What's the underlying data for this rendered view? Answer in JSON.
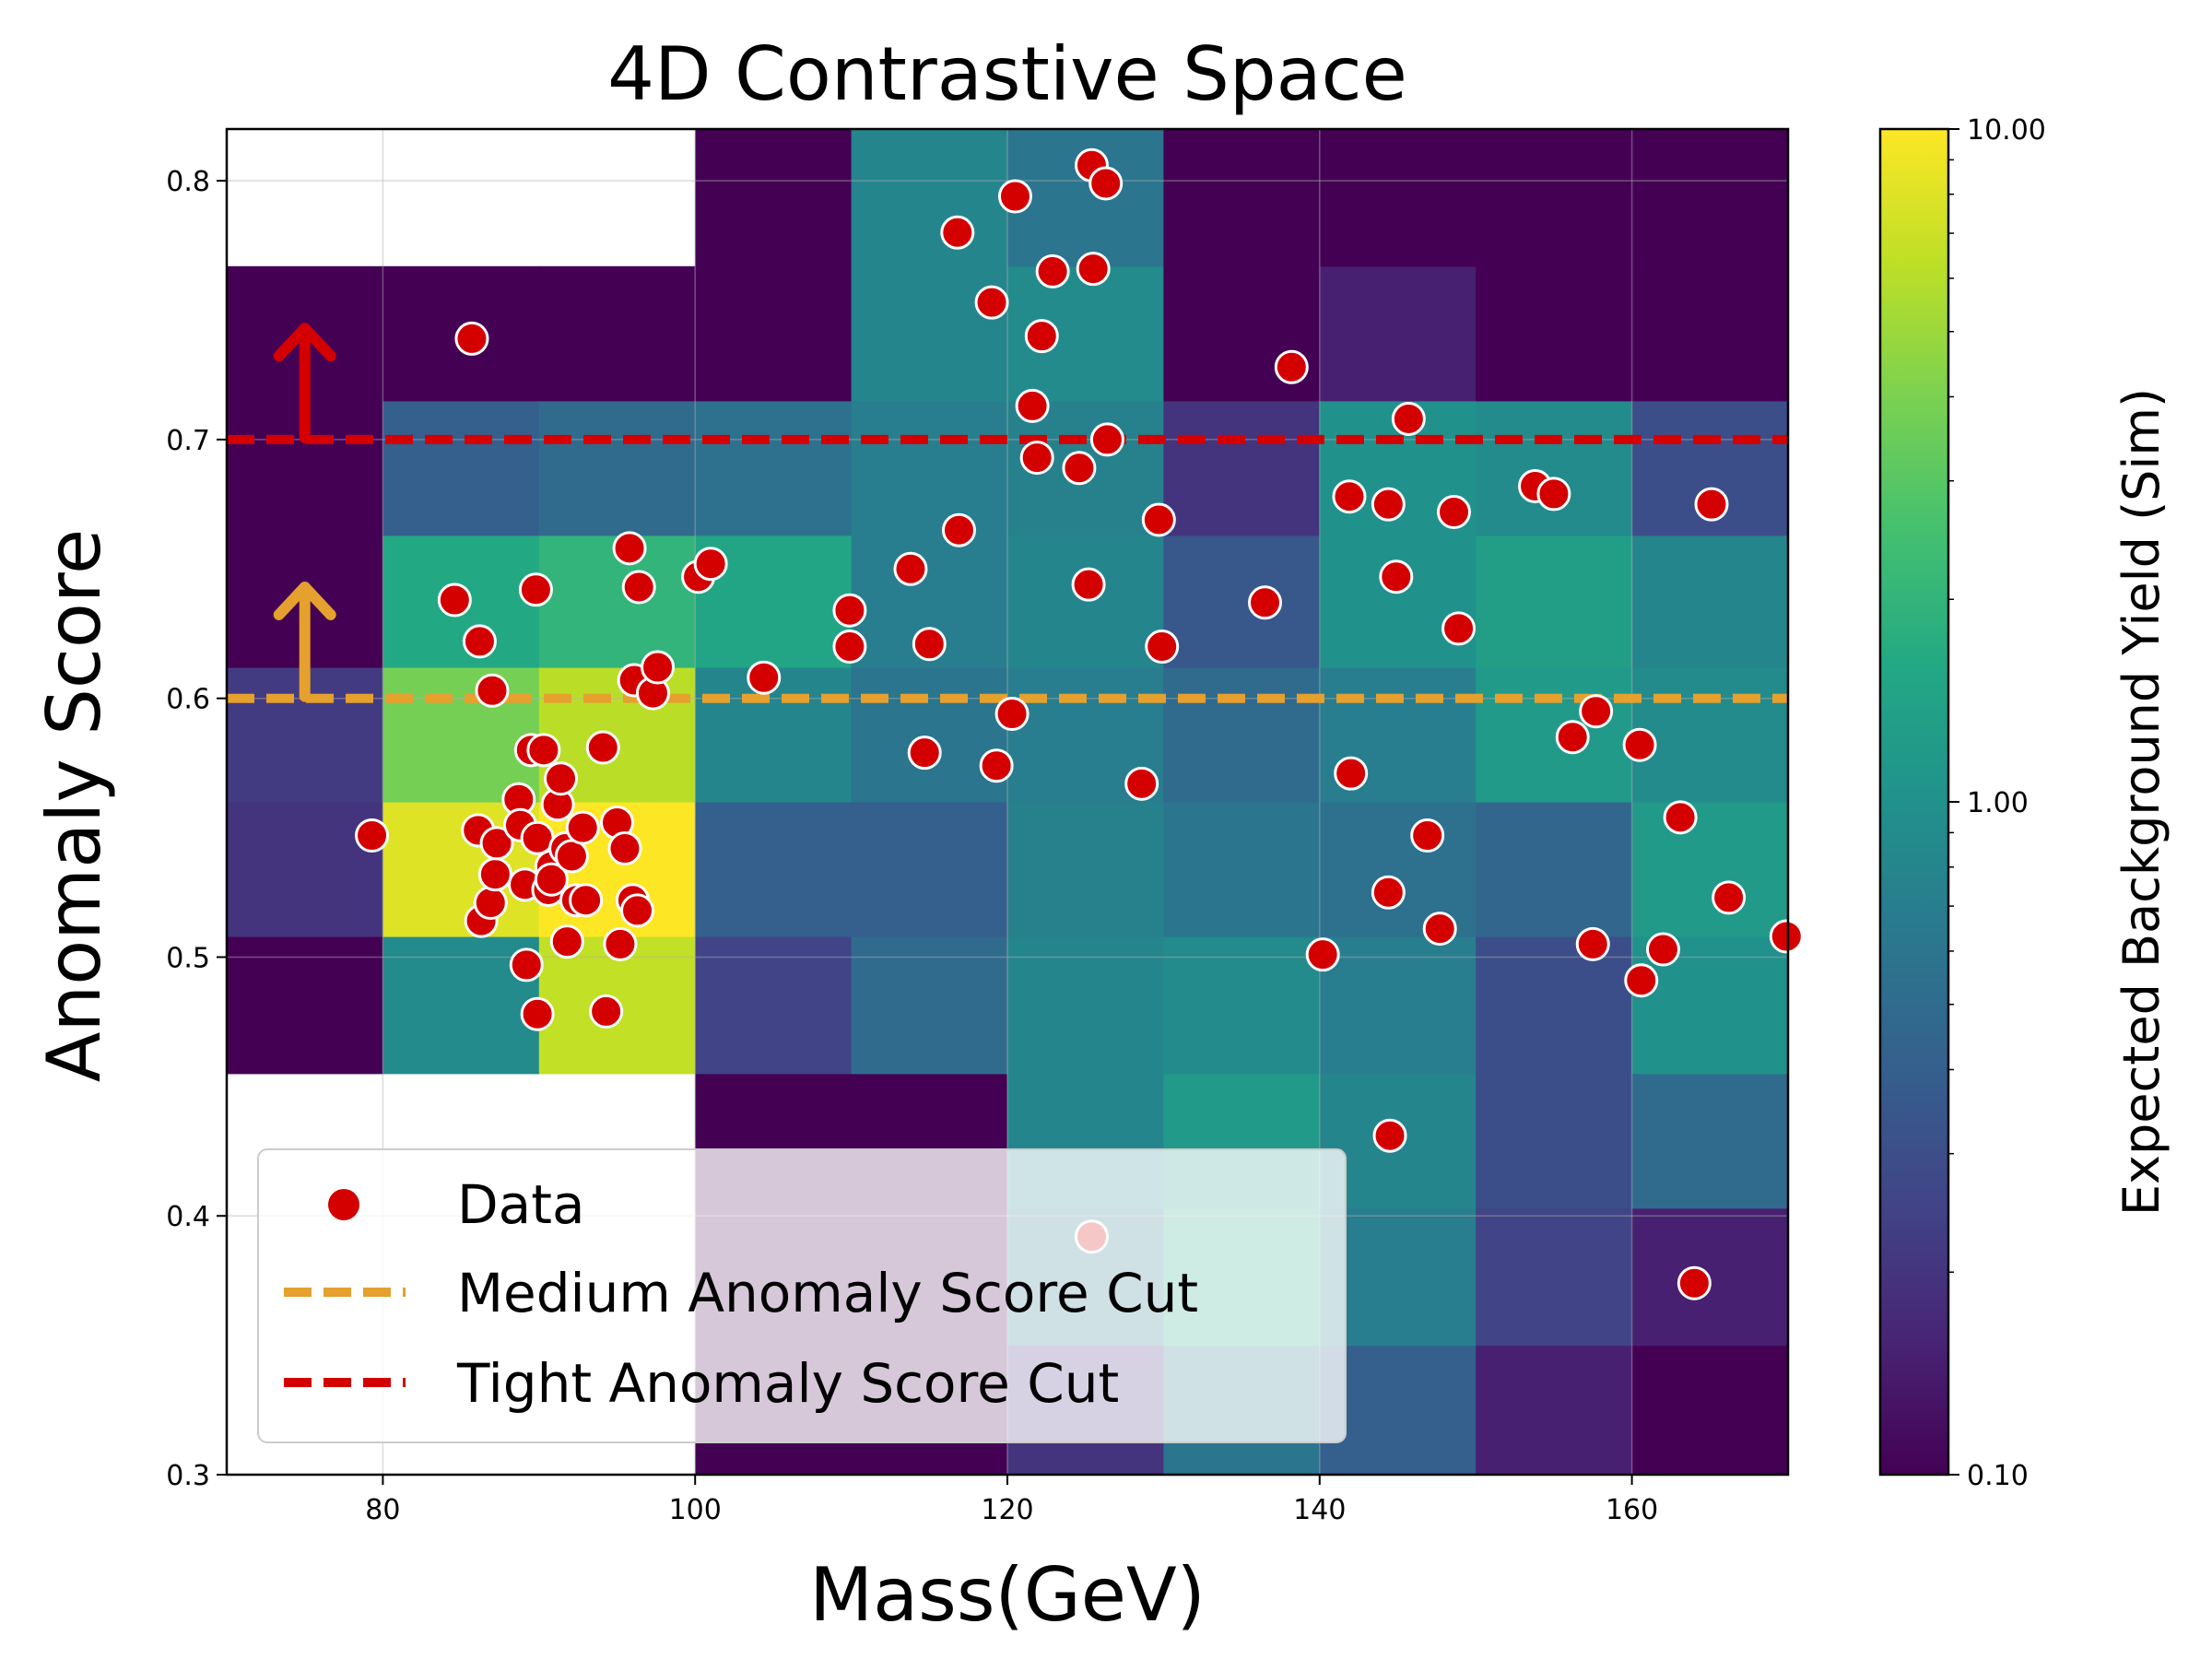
{
  "chart_data": {
    "type": "scatter",
    "title": "4D Contrastive Space",
    "xlabel": "Mass(GeV)",
    "ylabel": "Anomaly Score",
    "xlim": [
      70,
      170
    ],
    "ylim": [
      0.3,
      0.82
    ],
    "xticks": [
      80,
      100,
      120,
      140,
      160
    ],
    "yticks": [
      0.3,
      0.4,
      0.5,
      0.6,
      0.7,
      0.8
    ],
    "xtick_labels": [
      "80",
      "100",
      "120",
      "140",
      "160"
    ],
    "ytick_labels": [
      "0.3",
      "0.4",
      "0.5",
      "0.6",
      "0.7",
      "0.8"
    ],
    "grid": true,
    "colorbar": {
      "label": "Expected Background Yield (Sim)",
      "scale": "log",
      "min": 0.1,
      "max": 10,
      "tick_values": [
        0.1,
        1,
        10
      ],
      "tick_labels": [
        "0.10",
        "1.00",
        "10.00"
      ],
      "colormap": "viridis"
    },
    "heatmap": {
      "columns": [
        {
          "x0": 70,
          "x1": 80,
          "cells": [
            {
              "y0": 0.455,
              "y1": 0.508,
              "v": 0.1
            },
            {
              "y0": 0.508,
              "y1": 0.56,
              "v": 0.2
            },
            {
              "y0": 0.56,
              "y1": 0.612,
              "v": 0.22
            },
            {
              "y0": 0.612,
              "y1": 0.663,
              "v": 0.1
            },
            {
              "y0": 0.663,
              "y1": 0.715,
              "v": 0.1
            },
            {
              "y0": 0.715,
              "y1": 0.767,
              "v": 0.1
            }
          ]
        },
        {
          "x0": 80,
          "x1": 90,
          "cells": [
            {
              "y0": 0.455,
              "y1": 0.508,
              "v": 0.9
            },
            {
              "y0": 0.508,
              "y1": 0.56,
              "v": 8.0
            },
            {
              "y0": 0.56,
              "y1": 0.612,
              "v": 3.8
            },
            {
              "y0": 0.612,
              "y1": 0.663,
              "v": 1.6
            },
            {
              "y0": 0.663,
              "y1": 0.715,
              "v": 0.4
            },
            {
              "y0": 0.715,
              "y1": 0.767,
              "v": 0.1
            }
          ]
        },
        {
          "x0": 90,
          "x1": 100,
          "cells": [
            {
              "y0": 0.455,
              "y1": 0.508,
              "v": 6.5
            },
            {
              "y0": 0.508,
              "y1": 0.56,
              "v": 10.0
            },
            {
              "y0": 0.56,
              "y1": 0.612,
              "v": 6.2
            },
            {
              "y0": 0.612,
              "y1": 0.663,
              "v": 2.0
            },
            {
              "y0": 0.663,
              "y1": 0.715,
              "v": 0.5
            },
            {
              "y0": 0.715,
              "y1": 0.767,
              "v": 0.1
            }
          ]
        },
        {
          "x0": 100,
          "x1": 110,
          "cells": [
            {
              "y0": 0.3,
              "y1": 0.403,
              "v": 0.1
            },
            {
              "y0": 0.403,
              "y1": 0.455,
              "v": 0.1
            },
            {
              "y0": 0.455,
              "y1": 0.508,
              "v": 0.25
            },
            {
              "y0": 0.508,
              "y1": 0.56,
              "v": 0.4
            },
            {
              "y0": 0.56,
              "y1": 0.612,
              "v": 0.8
            },
            {
              "y0": 0.612,
              "y1": 0.663,
              "v": 1.5
            },
            {
              "y0": 0.663,
              "y1": 0.715,
              "v": 0.55
            },
            {
              "y0": 0.715,
              "y1": 0.767,
              "v": 0.1
            },
            {
              "y0": 0.767,
              "y1": 0.82,
              "v": 0.1
            }
          ]
        },
        {
          "x0": 110,
          "x1": 120,
          "cells": [
            {
              "y0": 0.3,
              "y1": 0.35,
              "v": 0.1
            },
            {
              "y0": 0.35,
              "y1": 0.403,
              "v": 0.1
            },
            {
              "y0": 0.403,
              "y1": 0.455,
              "v": 0.1
            },
            {
              "y0": 0.455,
              "y1": 0.508,
              "v": 0.5
            },
            {
              "y0": 0.508,
              "y1": 0.56,
              "v": 0.4
            },
            {
              "y0": 0.56,
              "y1": 0.612,
              "v": 0.6
            },
            {
              "y0": 0.612,
              "y1": 0.663,
              "v": 0.7
            },
            {
              "y0": 0.663,
              "y1": 0.715,
              "v": 0.7
            },
            {
              "y0": 0.715,
              "y1": 0.767,
              "v": 0.8
            },
            {
              "y0": 0.767,
              "y1": 0.82,
              "v": 0.8
            }
          ]
        },
        {
          "x0": 120,
          "x1": 130,
          "cells": [
            {
              "y0": 0.3,
              "y1": 0.35,
              "v": 0.2
            },
            {
              "y0": 0.35,
              "y1": 0.403,
              "v": 0.6
            },
            {
              "y0": 0.403,
              "y1": 0.455,
              "v": 0.8
            },
            {
              "y0": 0.455,
              "y1": 0.508,
              "v": 0.8
            },
            {
              "y0": 0.508,
              "y1": 0.56,
              "v": 0.75
            },
            {
              "y0": 0.56,
              "y1": 0.612,
              "v": 0.7
            },
            {
              "y0": 0.612,
              "y1": 0.663,
              "v": 0.8
            },
            {
              "y0": 0.663,
              "y1": 0.715,
              "v": 0.75
            },
            {
              "y0": 0.715,
              "y1": 0.767,
              "v": 0.9
            },
            {
              "y0": 0.767,
              "y1": 0.82,
              "v": 0.6
            }
          ]
        },
        {
          "x0": 130,
          "x1": 140,
          "cells": [
            {
              "y0": 0.3,
              "y1": 0.35,
              "v": 0.6
            },
            {
              "y0": 0.35,
              "y1": 0.403,
              "v": 1.5
            },
            {
              "y0": 0.403,
              "y1": 0.455,
              "v": 1.2
            },
            {
              "y0": 0.455,
              "y1": 0.508,
              "v": 0.9
            },
            {
              "y0": 0.508,
              "y1": 0.56,
              "v": 0.6
            },
            {
              "y0": 0.56,
              "y1": 0.612,
              "v": 0.5
            },
            {
              "y0": 0.612,
              "y1": 0.663,
              "v": 0.35
            },
            {
              "y0": 0.663,
              "y1": 0.715,
              "v": 0.2
            },
            {
              "y0": 0.715,
              "y1": 0.767,
              "v": 0.1
            },
            {
              "y0": 0.767,
              "y1": 0.82,
              "v": 0.1
            }
          ]
        },
        {
          "x0": 140,
          "x1": 150,
          "cells": [
            {
              "y0": 0.3,
              "y1": 0.35,
              "v": 0.4
            },
            {
              "y0": 0.35,
              "y1": 0.403,
              "v": 0.7
            },
            {
              "y0": 0.403,
              "y1": 0.455,
              "v": 0.8
            },
            {
              "y0": 0.455,
              "y1": 0.508,
              "v": 0.7
            },
            {
              "y0": 0.508,
              "y1": 0.56,
              "v": 0.55
            },
            {
              "y0": 0.56,
              "y1": 0.612,
              "v": 0.7
            },
            {
              "y0": 0.612,
              "y1": 0.663,
              "v": 1.0
            },
            {
              "y0": 0.663,
              "y1": 0.715,
              "v": 1.0
            },
            {
              "y0": 0.715,
              "y1": 0.767,
              "v": 0.15
            },
            {
              "y0": 0.767,
              "y1": 0.82,
              "v": 0.1
            }
          ]
        },
        {
          "x0": 150,
          "x1": 160,
          "cells": [
            {
              "y0": 0.3,
              "y1": 0.35,
              "v": 0.15
            },
            {
              "y0": 0.35,
              "y1": 0.403,
              "v": 0.25
            },
            {
              "y0": 0.403,
              "y1": 0.455,
              "v": 0.3
            },
            {
              "y0": 0.455,
              "y1": 0.508,
              "v": 0.3
            },
            {
              "y0": 0.508,
              "y1": 0.56,
              "v": 0.45
            },
            {
              "y0": 0.56,
              "y1": 0.612,
              "v": 1.2
            },
            {
              "y0": 0.612,
              "y1": 0.663,
              "v": 1.3
            },
            {
              "y0": 0.663,
              "y1": 0.715,
              "v": 0.9
            },
            {
              "y0": 0.715,
              "y1": 0.767,
              "v": 0.1
            },
            {
              "y0": 0.767,
              "y1": 0.82,
              "v": 0.1
            }
          ]
        },
        {
          "x0": 160,
          "x1": 170,
          "cells": [
            {
              "y0": 0.3,
              "y1": 0.35,
              "v": 0.1
            },
            {
              "y0": 0.35,
              "y1": 0.403,
              "v": 0.15
            },
            {
              "y0": 0.403,
              "y1": 0.455,
              "v": 0.5
            },
            {
              "y0": 0.455,
              "y1": 0.508,
              "v": 1.0
            },
            {
              "y0": 0.508,
              "y1": 0.56,
              "v": 1.2
            },
            {
              "y0": 0.56,
              "y1": 0.612,
              "v": 0.9
            },
            {
              "y0": 0.612,
              "y1": 0.663,
              "v": 0.8
            },
            {
              "y0": 0.663,
              "y1": 0.715,
              "v": 0.3
            },
            {
              "y0": 0.715,
              "y1": 0.767,
              "v": 0.1
            },
            {
              "y0": 0.767,
              "y1": 0.82,
              "v": 0.1
            }
          ]
        }
      ]
    },
    "cuts": [
      {
        "name": "Medium Anomaly Score Cut",
        "y": 0.6,
        "color": "#e5a02e"
      },
      {
        "name": "Tight Anomaly Score Cut",
        "y": 0.7,
        "color": "#d40000"
      }
    ],
    "series": [
      {
        "name": "Data",
        "color": "#d40000",
        "x": [
          79.3,
          85.7,
          84.6,
          86.2,
          87.0,
          86.1,
          86.3,
          86.9,
          87.2,
          87.3,
          88.7,
          88.8,
          89.1,
          89.2,
          89.5,
          89.8,
          89.9,
          89.9,
          90.3,
          90.6,
          90.8,
          90.8,
          91.2,
          91.4,
          91.7,
          91.8,
          92.1,
          92.4,
          92.8,
          93.0,
          94.1,
          94.3,
          95.0,
          95.2,
          95.5,
          95.8,
          96.0,
          96.1,
          96.3,
          96.4,
          97.3,
          97.6,
          100.2,
          101.0,
          104.4,
          109.9,
          109.9,
          113.8,
          114.7,
          115.0,
          116.8,
          116.9,
          119.0,
          119.3,
          120.3,
          120.5,
          121.6,
          121.9,
          122.2,
          122.9,
          124.6,
          125.2,
          125.4,
          125.4,
          125.5,
          126.3,
          126.4,
          128.6,
          129.7,
          129.9,
          136.5,
          138.2,
          140.2,
          141.9,
          142.0,
          144.4,
          144.4,
          144.5,
          144.9,
          145.7,
          146.9,
          147.7,
          148.6,
          148.9,
          153.8,
          155.0,
          156.2,
          157.5,
          157.7,
          160.5,
          160.6,
          162.0,
          163.1,
          164.0,
          165.1,
          166.2,
          169.9
        ],
        "y": [
          0.547,
          0.739,
          0.638,
          0.622,
          0.603,
          0.549,
          0.514,
          0.521,
          0.532,
          0.544,
          0.561,
          0.551,
          0.528,
          0.497,
          0.58,
          0.642,
          0.478,
          0.546,
          0.58,
          0.526,
          0.535,
          0.53,
          0.559,
          0.569,
          0.542,
          0.506,
          0.539,
          0.522,
          0.55,
          0.522,
          0.581,
          0.479,
          0.552,
          0.505,
          0.542,
          0.658,
          0.522,
          0.607,
          0.518,
          0.643,
          0.602,
          0.612,
          0.647,
          0.652,
          0.608,
          0.634,
          0.62,
          0.65,
          0.579,
          0.621,
          0.78,
          0.665,
          0.753,
          0.574,
          0.594,
          0.794,
          0.713,
          0.693,
          0.74,
          0.765,
          0.689,
          0.644,
          0.806,
          0.392,
          0.766,
          0.799,
          0.7,
          0.567,
          0.669,
          0.62,
          0.637,
          0.728,
          0.501,
          0.678,
          0.571,
          0.675,
          0.525,
          0.431,
          0.647,
          0.708,
          0.547,
          0.511,
          0.672,
          0.627,
          0.682,
          0.679,
          0.585,
          0.505,
          0.595,
          0.582,
          0.491,
          0.503,
          0.554,
          0.374,
          0.675,
          0.523,
          0.508
        ]
      }
    ],
    "legend": {
      "position": "lower-left",
      "entries": [
        "Data",
        "Medium Anomaly Score Cut",
        "Tight Anomaly Score Cut"
      ]
    }
  }
}
